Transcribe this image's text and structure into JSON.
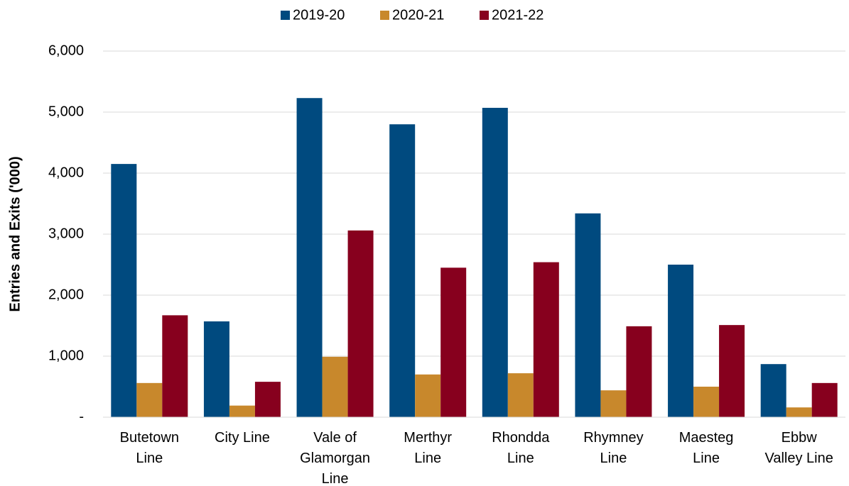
{
  "chart_data": {
    "type": "bar",
    "y_label": "Entries and Exits ('000)",
    "categories": [
      "Butetown\nLine",
      "City Line",
      "Vale of\nGlamorgan\nLine",
      "Merthyr\nLine",
      "Rhondda\nLine",
      "Rhymney\nLine",
      "Maesteg\nLine",
      "Ebbw\nValley Line"
    ],
    "series": [
      {
        "name": "2019-20",
        "color": "#004a7f",
        "values": [
          4150,
          1570,
          5230,
          4800,
          5070,
          3340,
          2500,
          870
        ]
      },
      {
        "name": "2020-21",
        "color": "#c8882c",
        "values": [
          560,
          190,
          990,
          700,
          720,
          440,
          500,
          160
        ]
      },
      {
        "name": "2021-22",
        "color": "#87001e",
        "values": [
          1670,
          580,
          3060,
          2450,
          2540,
          1490,
          1510,
          560
        ]
      }
    ],
    "ylim": [
      0,
      6000
    ],
    "yticks": [
      {
        "value": 0,
        "label": "-"
      },
      {
        "value": 1000,
        "label": "1,000"
      },
      {
        "value": 2000,
        "label": "2,000"
      },
      {
        "value": 3000,
        "label": "3,000"
      },
      {
        "value": 4000,
        "label": "4,000"
      },
      {
        "value": 5000,
        "label": "5,000"
      },
      {
        "value": 6000,
        "label": "6,000"
      }
    ],
    "grid": true,
    "legend": "top"
  }
}
